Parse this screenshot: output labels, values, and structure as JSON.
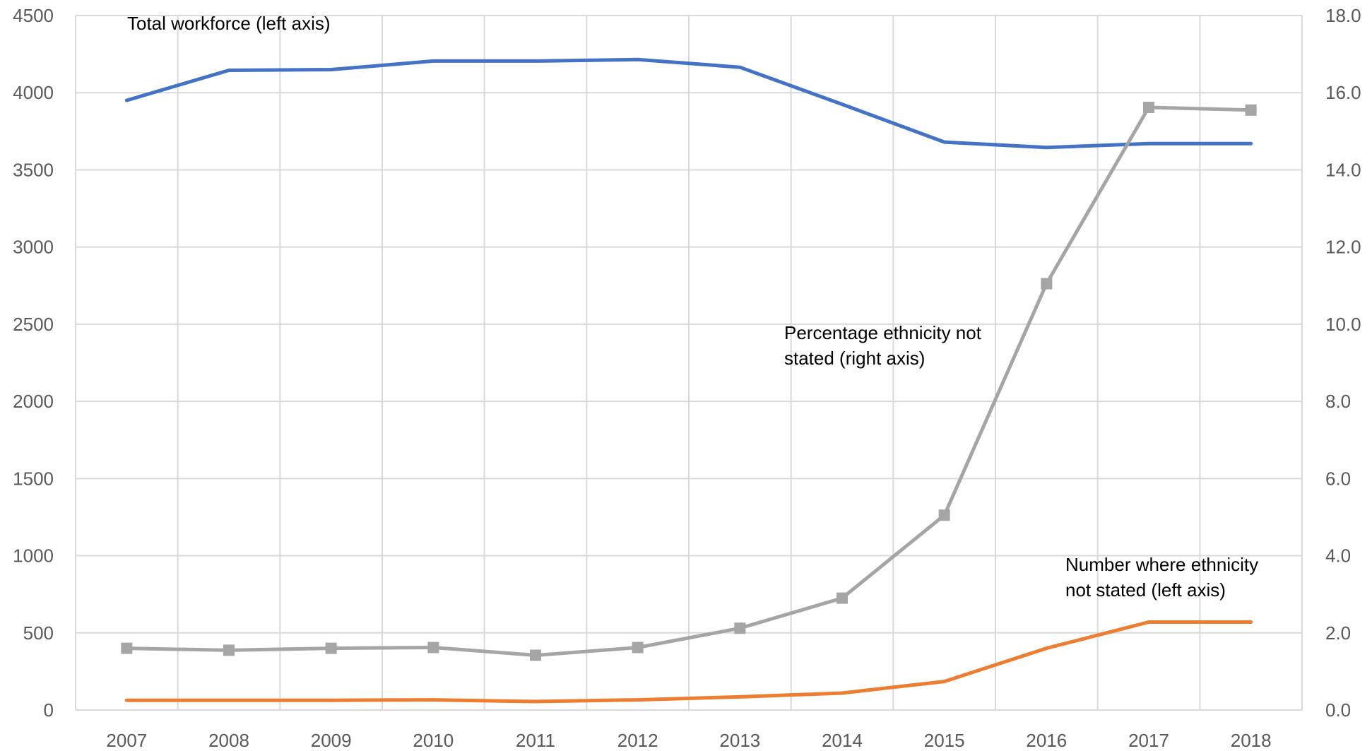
{
  "chart_data": {
    "type": "line",
    "x": [
      "2007",
      "2008",
      "2009",
      "2010",
      "2011",
      "2012",
      "2013",
      "2014",
      "2015",
      "2016",
      "2017",
      "2018"
    ],
    "y_left": {
      "min": 0,
      "max": 4500,
      "ticks": [
        "0",
        "500",
        "1000",
        "1500",
        "2000",
        "2500",
        "3000",
        "3500",
        "4000",
        "4500"
      ]
    },
    "y_right": {
      "min": 0,
      "max": 18,
      "ticks": [
        "0.0",
        "2.0",
        "4.0",
        "6.0",
        "8.0",
        "10.0",
        "12.0",
        "14.0",
        "16.0",
        "18.0"
      ]
    },
    "grid": true,
    "series": [
      {
        "name": "Total workforce (left axis)",
        "axis": "left",
        "color": "#4472c4",
        "markers": false,
        "values": [
          3950,
          4145,
          4150,
          4205,
          4205,
          4215,
          4165,
          3925,
          3680,
          3645,
          3670,
          3670
        ]
      },
      {
        "name": "Number where ethnicity not stated (left axis)",
        "axis": "left",
        "color": "#ed7d31",
        "markers": false,
        "values": [
          63,
          63,
          63,
          66,
          55,
          66,
          85,
          110,
          185,
          400,
          570,
          570
        ]
      },
      {
        "name": "Percentage ethnicity not stated (right axis)",
        "axis": "right",
        "color": "#a5a5a5",
        "markers": true,
        "values": [
          1.6,
          1.55,
          1.6,
          1.62,
          1.42,
          1.62,
          2.12,
          2.9,
          5.05,
          11.05,
          15.62,
          15.55
        ]
      }
    ],
    "annotations": [
      {
        "lines": [
          "Total workforce (left axis)"
        ]
      },
      {
        "lines": [
          "Percentage ethnicity not",
          "stated (right axis)"
        ]
      },
      {
        "lines": [
          "Number where ethnicity",
          "not stated (left axis)"
        ]
      }
    ]
  }
}
